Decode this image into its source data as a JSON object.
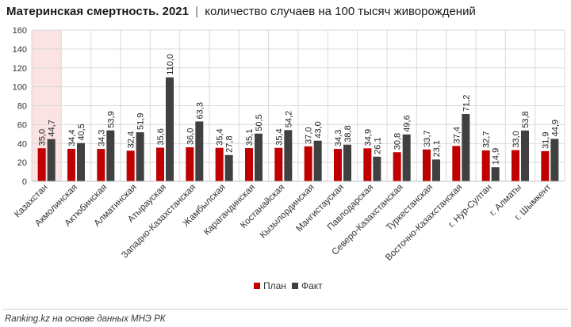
{
  "title": "Материнская смертность. 2021",
  "separator": "|",
  "subtitle": "количество случаев на 100 тысяч живорождений",
  "source": "Ranking.kz на основе данных МНЭ РК",
  "colors": {
    "plan": "#c00000",
    "fact": "#404040",
    "highlight": "#fbe3e3",
    "grid": "#d9d9d9"
  },
  "chart_data": {
    "type": "bar",
    "title": "Материнская смертность. 2021",
    "subtitle": "количество случаев на 100 тысяч живорождений",
    "ylim": [
      0,
      160
    ],
    "yticks": [
      0,
      20,
      40,
      60,
      80,
      100,
      120,
      140,
      160
    ],
    "grid": true,
    "legend_position": "bottom",
    "highlighted_category": "Казахстан",
    "categories": [
      "Казахстан",
      "Акмолинская",
      "Актюбинская",
      "Алматинская",
      "Атырауская",
      "Западно-Казахстанская",
      "Жамбылская",
      "Карагандинская",
      "Костанайская",
      "Кызылординская",
      "Мангистауская",
      "Павлодарская",
      "Северо-Казахстанская",
      "Туркестанская",
      "Восточно-Казахстанская",
      "г. Нур-Султан",
      "г. Алматы",
      "г. Шымкент"
    ],
    "series": [
      {
        "name": "План",
        "values": [
          35.0,
          34.4,
          34.3,
          32.4,
          35.6,
          36.0,
          35.4,
          35.1,
          35.4,
          37.0,
          34.3,
          34.9,
          30.8,
          33.7,
          37.4,
          32.7,
          33.0,
          31.9
        ],
        "labels": [
          "35,0",
          "34,4",
          "34,3",
          "32,4",
          "35,6",
          "36,0",
          "35,4",
          "35,1",
          "35,4",
          "37,0",
          "34,3",
          "34,9",
          "30,8",
          "33,7",
          "37,4",
          "32,7",
          "33,0",
          "31,9"
        ]
      },
      {
        "name": "Факт",
        "values": [
          44.7,
          40.5,
          53.9,
          51.9,
          110.0,
          63.3,
          27.8,
          50.5,
          54.2,
          43.0,
          38.8,
          26.1,
          49.6,
          23.1,
          71.2,
          14.9,
          53.8,
          44.9
        ],
        "labels": [
          "44,7",
          "40,5",
          "53,9",
          "51,9",
          "110,0",
          "63,3",
          "27,8",
          "50,5",
          "54,2",
          "43,0",
          "38,8",
          "26,1",
          "49,6",
          "23,1",
          "71,2",
          "14,9",
          "53,8",
          "44,9"
        ]
      }
    ]
  }
}
